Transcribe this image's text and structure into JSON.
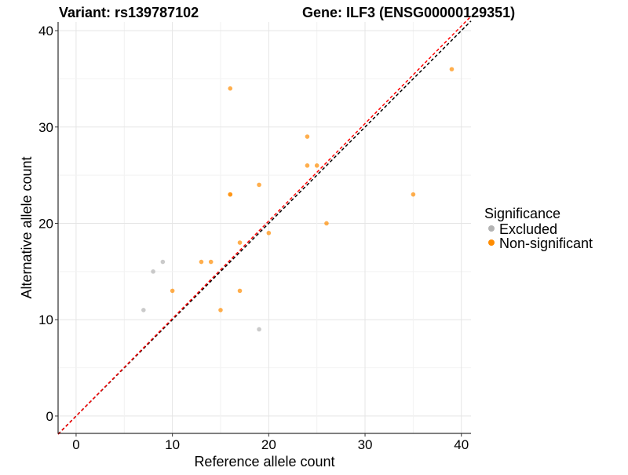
{
  "chart_data": {
    "type": "scatter",
    "title_left": "Variant: rs139787102",
    "title_right": "Gene: ILF3 (ENSG00000129351)",
    "xlabel": "Reference allele count",
    "ylabel": "Alternative allele count",
    "xlim": [
      -1.87,
      41
    ],
    "ylim": [
      -1.8,
      40.9
    ],
    "xticks": [
      0,
      10,
      20,
      30,
      40
    ],
    "yticks": [
      0,
      10,
      20,
      30,
      40
    ],
    "grid": true,
    "legend": {
      "title": "Significance",
      "placement": "right",
      "entries": [
        {
          "label": "Excluded",
          "color": "#b3b3b3"
        },
        {
          "label": "Non-significant",
          "color": "#ff8c00"
        }
      ]
    },
    "series": [
      {
        "name": "Excluded",
        "color": "#b3b3b3",
        "points": [
          [
            7,
            11
          ],
          [
            8,
            15
          ],
          [
            9,
            16
          ],
          [
            19,
            9
          ]
        ]
      },
      {
        "name": "Non-significant",
        "color": "#ff8c00",
        "points": [
          [
            16,
            34
          ],
          [
            39,
            36
          ],
          [
            24,
            29
          ],
          [
            24,
            26
          ],
          [
            25,
            26
          ],
          [
            16,
            23
          ],
          [
            16,
            23
          ],
          [
            19,
            24
          ],
          [
            35,
            23
          ],
          [
            26,
            20
          ],
          [
            20,
            19
          ],
          [
            17,
            18
          ],
          [
            13,
            16
          ],
          [
            14,
            16
          ],
          [
            10,
            13
          ],
          [
            17,
            13
          ],
          [
            15,
            11
          ]
        ]
      }
    ],
    "reference_lines": [
      {
        "name": "identity",
        "color": "#000000",
        "slope": 1,
        "intercept": 0
      },
      {
        "name": "fit",
        "color": "#ff0000",
        "slope": 1.012,
        "intercept": 0
      }
    ]
  }
}
